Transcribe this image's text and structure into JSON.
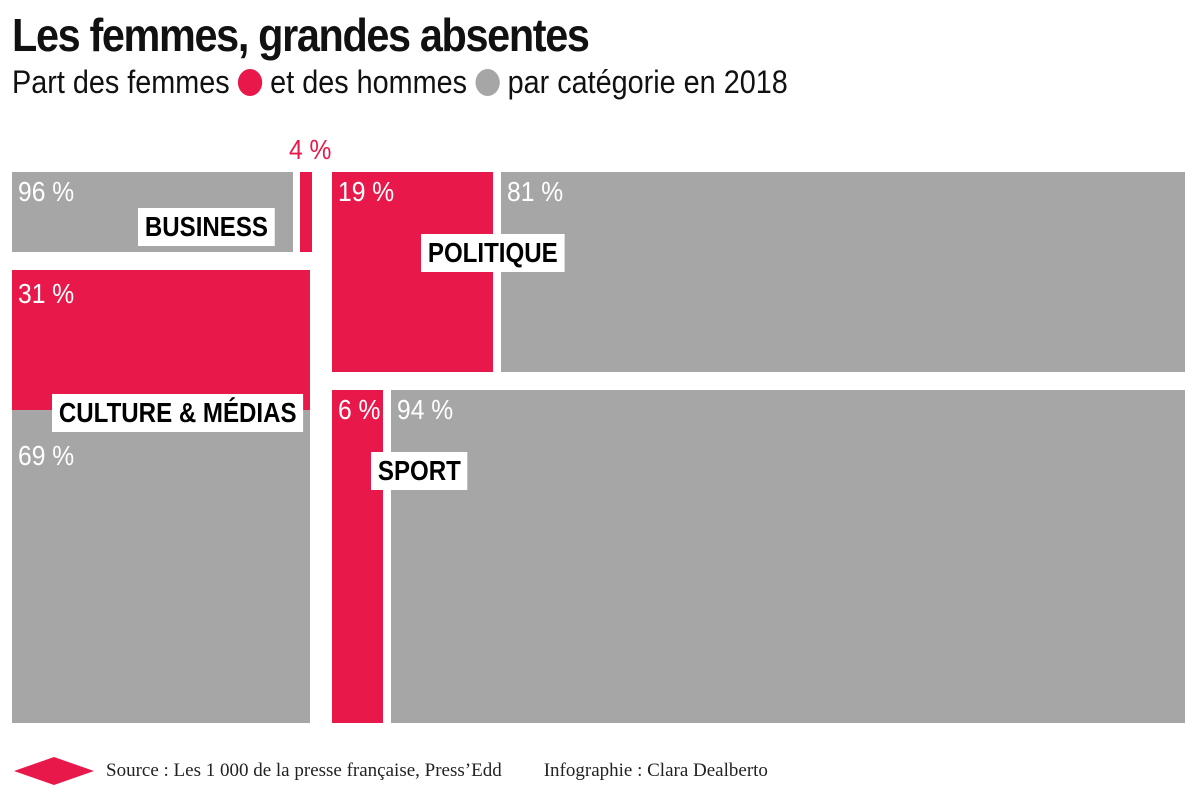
{
  "colors": {
    "women": "#e8194a",
    "men": "#a6a6a6"
  },
  "chart_data": {
    "type": "mosaic",
    "title": "Les femmes, grandes absentes",
    "subtitle_before": "Part des femmes",
    "subtitle_middle": "et des hommes",
    "subtitle_after": "par catégorie en 2018",
    "series": [
      {
        "name": "femmes",
        "color": "#e8194a"
      },
      {
        "name": "hommes",
        "color": "#a6a6a6"
      }
    ],
    "categories": [
      {
        "name": "BUSINESS",
        "femmes": 4,
        "hommes": 96,
        "femmes_label": "4 %",
        "hommes_label": "96 %"
      },
      {
        "name": "CULTURE & MÉDIAS",
        "femmes": 31,
        "hommes": 69,
        "femmes_label": "31 %",
        "hommes_label": "69 %"
      },
      {
        "name": "POLITIQUE",
        "femmes": 19,
        "hommes": 81,
        "femmes_label": "19 %",
        "hommes_label": "81 %"
      },
      {
        "name": "SPORT",
        "femmes": 6,
        "hommes": 94,
        "femmes_label": "6 %",
        "hommes_label": "94 %"
      }
    ]
  },
  "footer": {
    "source": "Source : Les 1 000 de la presse française, Press’Edd",
    "credit": "Infographie : Clara Dealberto"
  }
}
